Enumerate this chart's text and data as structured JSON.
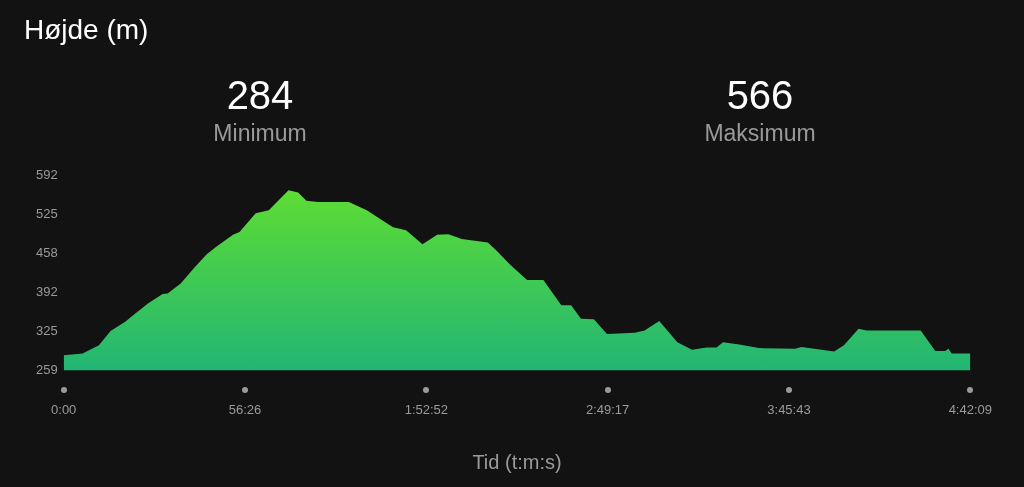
{
  "chart_data": {
    "type": "area",
    "title": "Højde (m)",
    "xlabel": "Tid (t:m:s)",
    "annotations": [
      "284",
      "Minimum",
      "566",
      "Maksimum"
    ],
    "x": [
      0,
      5.88,
      10.98,
      14.58,
      19.14,
      21.12,
      26.22,
      30.78,
      32.34,
      36.42,
      40.5,
      44.52,
      47.58,
      52.68,
      54.72,
      59.76,
      63.84,
      66.9,
      69.96,
      72.96,
      75.54,
      79.08,
      88.74,
      94.32,
      100.44,
      102.48,
      106.56,
      111.66,
      116.22,
      119.76,
      123.84,
      132,
      135.06,
      139.14,
      144.18,
      149.28,
      154.86,
      157.92,
      160.98,
      165,
      169.08,
      177.72,
      180.78,
      185.34,
      190.98,
      195.54,
      200.1,
      203.16,
      205.2,
      210.24,
      216.36,
      227.58,
      229.62,
      239.76,
      242.82,
      247.38,
      249.9,
      266.7,
      271.26,
      274.32,
      275.34,
      276.36,
      282.15
    ],
    "series": [
      {
        "color": "#62e02e",
        "values": [
          285,
          288,
          302,
          326,
          342,
          351,
          373,
          389,
          390,
          407,
          433,
          457,
          470,
          490,
          495,
          527,
          532,
          549,
          566,
          562,
          548,
          546,
          546,
          532,
          510,
          503,
          498,
          474,
          490,
          491,
          483,
          477,
          461,
          438,
          413,
          413,
          370,
          370,
          347,
          346,
          321,
          323,
          327,
          343,
          307,
          294,
          298,
          298,
          307,
          303,
          297,
          296,
          299,
          291,
          302,
          330,
          327,
          327,
          292,
          292,
          296,
          288,
          288
        ]
      }
    ],
    "xlim": [
      0,
      282.15
    ],
    "ylim": [
      259,
      592
    ],
    "xticks": [
      {
        "value": 0,
        "label": "0:00"
      },
      {
        "value": 56.4333,
        "label": "56:26"
      },
      {
        "value": 112.8667,
        "label": "1:52:52"
      },
      {
        "value": 169.2833,
        "label": "2:49:17"
      },
      {
        "value": 225.7167,
        "label": "3:45:43"
      },
      {
        "value": 282.15,
        "label": "4:42:09"
      }
    ],
    "yticks": [
      259,
      325,
      392,
      458,
      525,
      592
    ],
    "marker": "none"
  }
}
